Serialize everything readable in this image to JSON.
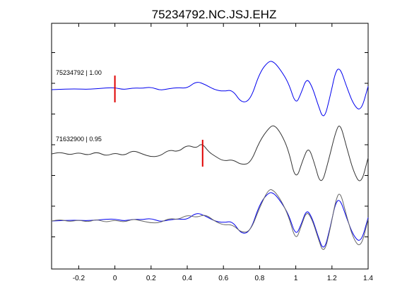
{
  "chart_data": {
    "type": "line",
    "title": "75234792.NC.JSJ.EHZ",
    "xlabel": "",
    "ylabel": "",
    "xlim": [
      -0.35,
      1.4
    ],
    "x_ticks": [
      -0.2,
      0,
      0.2,
      0.4,
      0.6,
      0.8,
      1,
      1.2,
      1.4
    ],
    "x_tick_labels": [
      "-0.2",
      "0",
      "0.2",
      "0.4",
      "0.6",
      "0.8",
      "1",
      "1.2",
      "1.4"
    ],
    "y_tick_count": 7,
    "grid": false,
    "traces": [
      {
        "label": "75234792 | 1.00",
        "color": "#0000ee",
        "offset": 0,
        "pick_time": 0.0,
        "points": [
          [
            -0.35,
            0
          ],
          [
            -0.3,
            0.01
          ],
          [
            -0.25,
            0.02
          ],
          [
            -0.2,
            0.02
          ],
          [
            -0.15,
            0.01
          ],
          [
            -0.1,
            0.03
          ],
          [
            -0.05,
            0.05
          ],
          [
            0,
            0.06
          ],
          [
            0.05,
            0.0
          ],
          [
            0.1,
            0.05
          ],
          [
            0.15,
            0.04
          ],
          [
            0.2,
            0.08
          ],
          [
            0.25,
            -0.02
          ],
          [
            0.3,
            0.03
          ],
          [
            0.35,
            0.06
          ],
          [
            0.4,
            0.04
          ],
          [
            0.45,
            0.25
          ],
          [
            0.5,
            0.15
          ],
          [
            0.55,
            0.0
          ],
          [
            0.6,
            -0.05
          ],
          [
            0.65,
            0.0
          ],
          [
            0.7,
            -0.4
          ],
          [
            0.75,
            -0.3
          ],
          [
            0.8,
            0.5
          ],
          [
            0.85,
            0.85
          ],
          [
            0.88,
            0.82
          ],
          [
            0.92,
            0.55
          ],
          [
            0.96,
            0.2
          ],
          [
            1.0,
            -0.45
          ],
          [
            1.03,
            -0.1
          ],
          [
            1.06,
            0.35
          ],
          [
            1.09,
            0.1
          ],
          [
            1.12,
            -0.4
          ],
          [
            1.155,
            -0.92
          ],
          [
            1.19,
            -0.2
          ],
          [
            1.22,
            0.55
          ],
          [
            1.245,
            0.65
          ],
          [
            1.28,
            0.1
          ],
          [
            1.32,
            -0.45
          ],
          [
            1.36,
            -0.65
          ],
          [
            1.4,
            0.1
          ]
        ]
      },
      {
        "label": "71632900 | 0.95",
        "color": "#333333",
        "offset": 0,
        "pick_time": 0.485,
        "points": [
          [
            -0.35,
            0.0
          ],
          [
            -0.3,
            0.05
          ],
          [
            -0.25,
            -0.03
          ],
          [
            -0.2,
            0.04
          ],
          [
            -0.15,
            -0.04
          ],
          [
            -0.1,
            0.06
          ],
          [
            -0.05,
            -0.06
          ],
          [
            0,
            0.03
          ],
          [
            0.05,
            -0.05
          ],
          [
            0.1,
            0.1
          ],
          [
            0.15,
            0.0
          ],
          [
            0.2,
            -0.08
          ],
          [
            0.25,
            -0.06
          ],
          [
            0.3,
            0.12
          ],
          [
            0.35,
            0.05
          ],
          [
            0.4,
            0.25
          ],
          [
            0.45,
            0.15
          ],
          [
            0.48,
            0.3
          ],
          [
            0.52,
            0.05
          ],
          [
            0.55,
            -0.05
          ],
          [
            0.6,
            -0.2
          ],
          [
            0.65,
            -0.15
          ],
          [
            0.7,
            -0.3
          ],
          [
            0.75,
            -0.25
          ],
          [
            0.8,
            0.35
          ],
          [
            0.85,
            0.7
          ],
          [
            0.88,
            0.8
          ],
          [
            0.92,
            0.55
          ],
          [
            0.96,
            0.1
          ],
          [
            1.0,
            -0.75
          ],
          [
            1.04,
            -0.15
          ],
          [
            1.07,
            0.2
          ],
          [
            1.1,
            -0.2
          ],
          [
            1.14,
            -0.9
          ],
          [
            1.18,
            -0.2
          ],
          [
            1.22,
            0.6
          ],
          [
            1.245,
            0.85
          ],
          [
            1.28,
            0.2
          ],
          [
            1.32,
            -0.5
          ],
          [
            1.36,
            -0.85
          ],
          [
            1.4,
            -0.1
          ]
        ]
      },
      {
        "label": "",
        "color": "#0000ee",
        "offset": 0,
        "pick_time": null,
        "points": [
          [
            -0.35,
            0
          ],
          [
            -0.3,
            0.01
          ],
          [
            -0.25,
            0.02
          ],
          [
            -0.2,
            0.02
          ],
          [
            -0.15,
            0.01
          ],
          [
            -0.1,
            0.03
          ],
          [
            -0.05,
            0.05
          ],
          [
            0,
            0.06
          ],
          [
            0.05,
            0.0
          ],
          [
            0.1,
            0.05
          ],
          [
            0.15,
            0.04
          ],
          [
            0.2,
            0.08
          ],
          [
            0.25,
            -0.02
          ],
          [
            0.3,
            0.03
          ],
          [
            0.35,
            0.06
          ],
          [
            0.4,
            0.04
          ],
          [
            0.45,
            0.25
          ],
          [
            0.5,
            0.15
          ],
          [
            0.55,
            0.0
          ],
          [
            0.6,
            -0.05
          ],
          [
            0.65,
            0.0
          ],
          [
            0.7,
            -0.4
          ],
          [
            0.75,
            -0.3
          ],
          [
            0.8,
            0.5
          ],
          [
            0.85,
            0.85
          ],
          [
            0.88,
            0.82
          ],
          [
            0.92,
            0.55
          ],
          [
            0.96,
            0.2
          ],
          [
            1.0,
            -0.45
          ],
          [
            1.03,
            -0.1
          ],
          [
            1.06,
            0.35
          ],
          [
            1.09,
            0.1
          ],
          [
            1.12,
            -0.4
          ],
          [
            1.155,
            -0.92
          ],
          [
            1.19,
            -0.2
          ],
          [
            1.22,
            0.55
          ],
          [
            1.245,
            0.65
          ],
          [
            1.28,
            0.1
          ],
          [
            1.32,
            -0.45
          ],
          [
            1.36,
            -0.65
          ],
          [
            1.4,
            0.1
          ]
        ]
      },
      {
        "label": "",
        "color": "#666666",
        "offset": 0,
        "pick_time": null,
        "points": [
          [
            -0.35,
            0.0
          ],
          [
            -0.3,
            0.04
          ],
          [
            -0.25,
            -0.02
          ],
          [
            -0.2,
            0.03
          ],
          [
            -0.15,
            -0.03
          ],
          [
            -0.1,
            0.05
          ],
          [
            -0.05,
            -0.04
          ],
          [
            0,
            0.03
          ],
          [
            0.05,
            -0.04
          ],
          [
            0.1,
            0.06
          ],
          [
            0.15,
            0.0
          ],
          [
            0.2,
            -0.06
          ],
          [
            0.25,
            -0.05
          ],
          [
            0.3,
            0.08
          ],
          [
            0.35,
            0.04
          ],
          [
            0.4,
            0.18
          ],
          [
            0.45,
            0.1
          ],
          [
            0.5,
            0.2
          ],
          [
            0.55,
            0.0
          ],
          [
            0.6,
            -0.12
          ],
          [
            0.65,
            -0.1
          ],
          [
            0.7,
            -0.35
          ],
          [
            0.75,
            -0.3
          ],
          [
            0.8,
            0.4
          ],
          [
            0.85,
            0.95
          ],
          [
            0.88,
            0.9
          ],
          [
            0.92,
            0.6
          ],
          [
            0.96,
            0.15
          ],
          [
            1.0,
            -0.6
          ],
          [
            1.03,
            -0.15
          ],
          [
            1.06,
            0.3
          ],
          [
            1.09,
            0.05
          ],
          [
            1.12,
            -0.45
          ],
          [
            1.155,
            -1.0
          ],
          [
            1.19,
            -0.25
          ],
          [
            1.22,
            0.6
          ],
          [
            1.245,
            0.9
          ],
          [
            1.28,
            0.15
          ],
          [
            1.32,
            -0.55
          ],
          [
            1.36,
            -0.8
          ],
          [
            1.4,
            0.05
          ]
        ]
      }
    ]
  }
}
